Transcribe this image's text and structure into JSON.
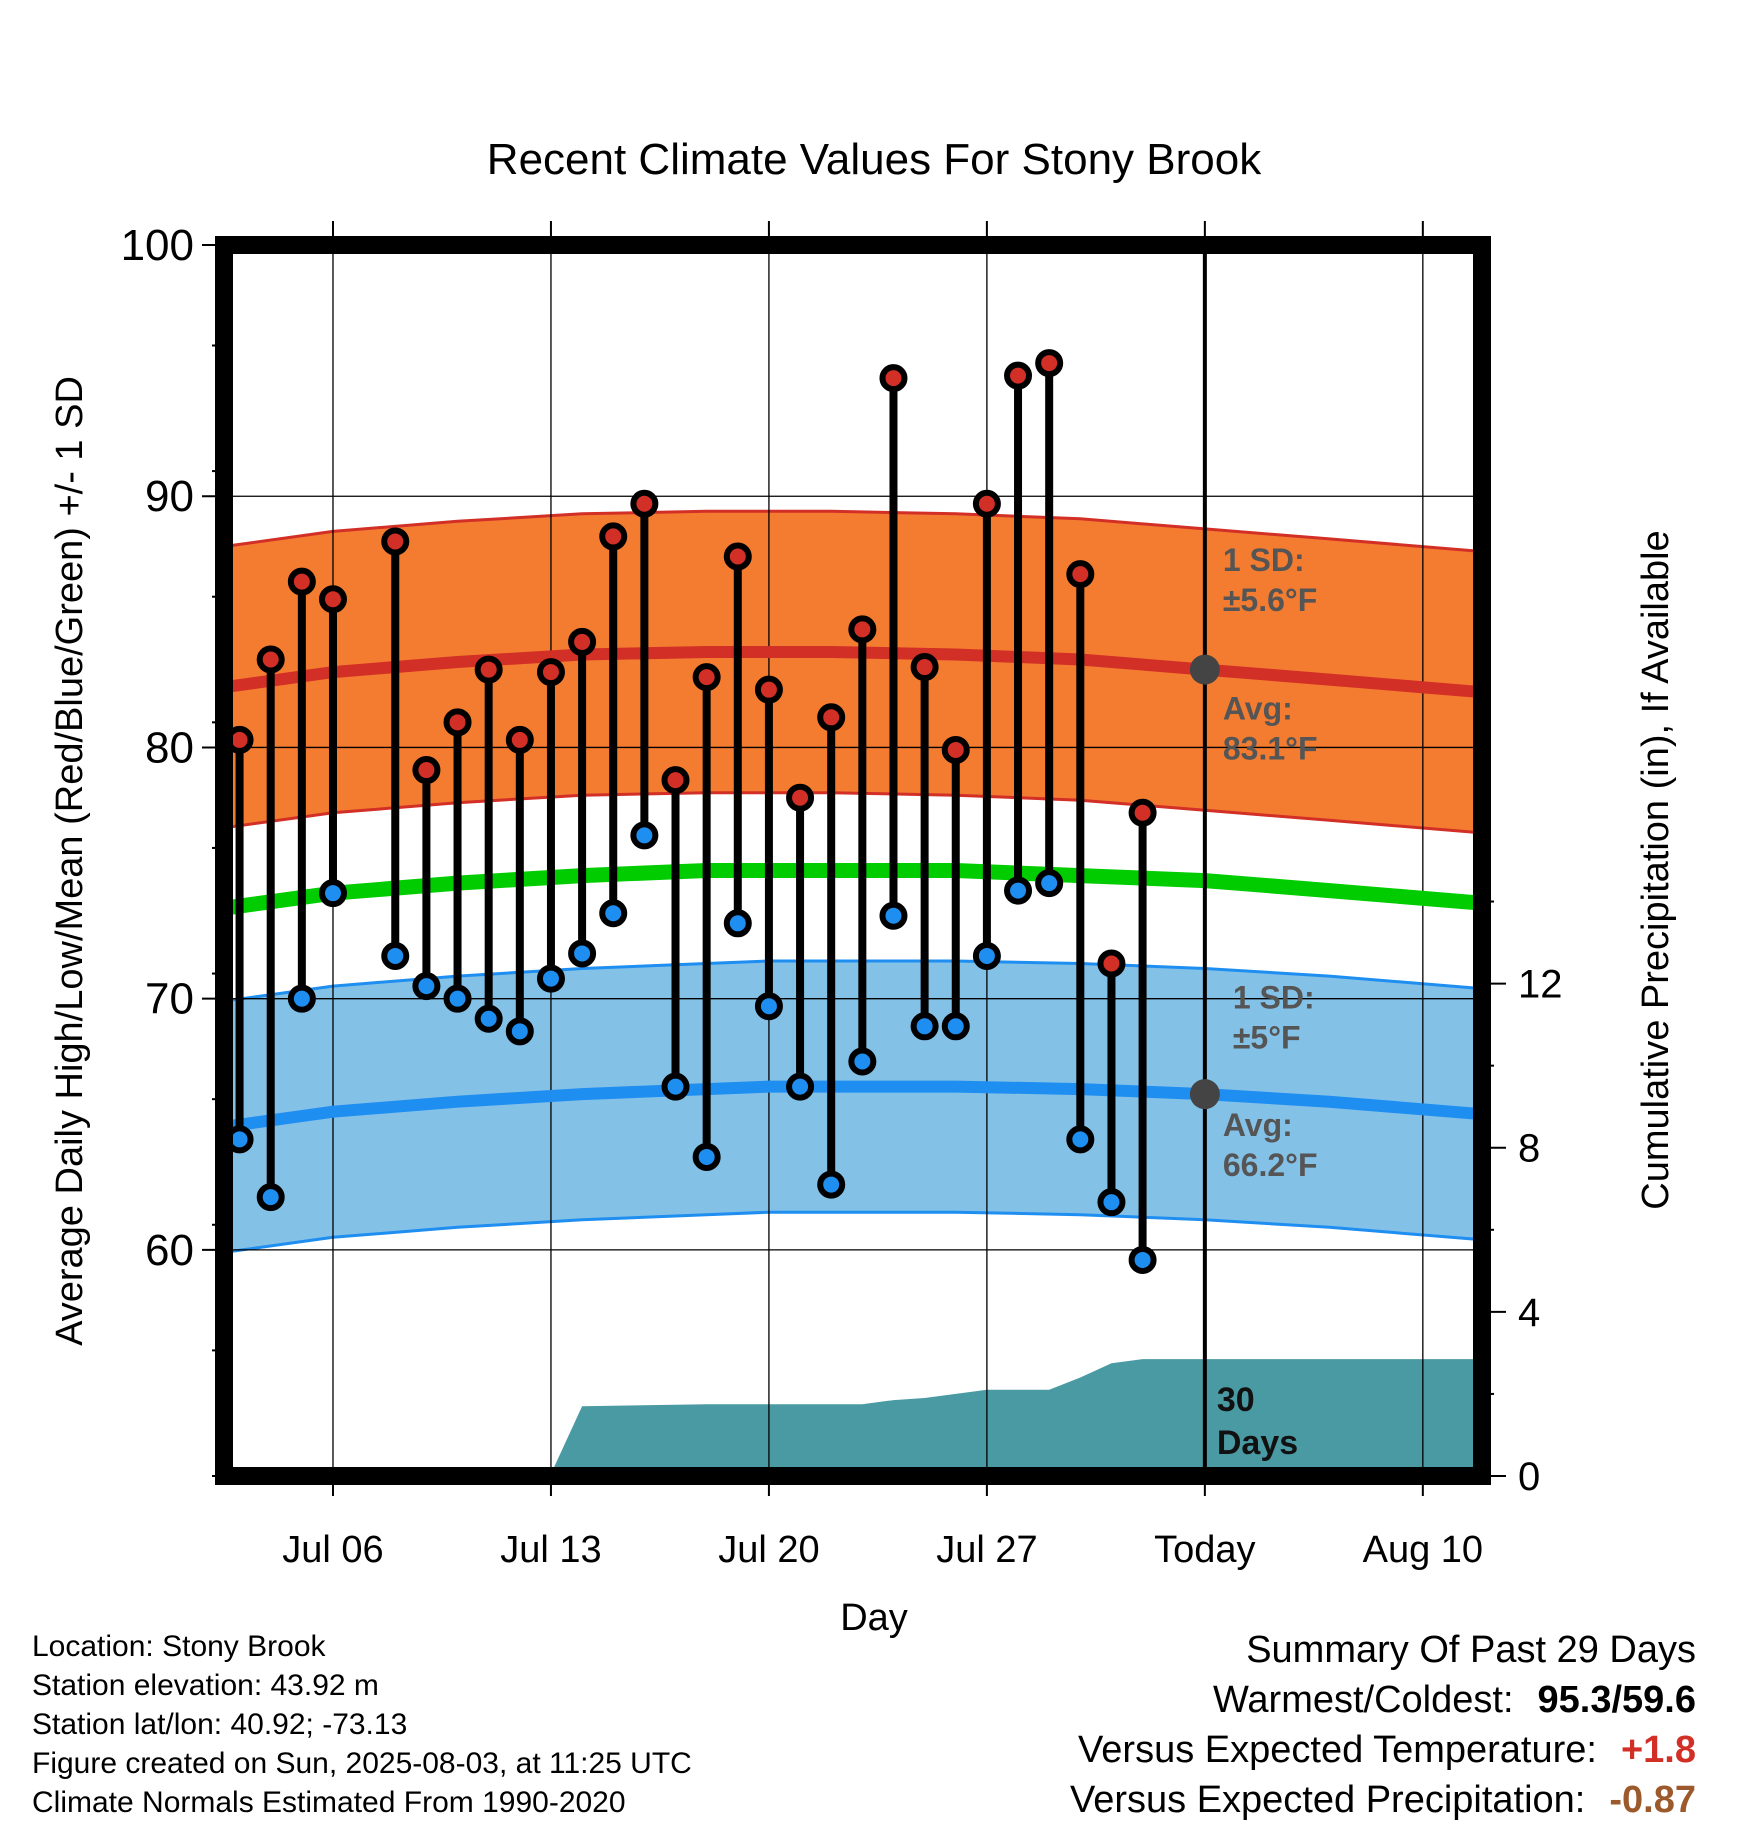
{
  "chart_data": {
    "type": "line",
    "title": "Recent Climate Values For Stony Brook",
    "xlabel": "Day",
    "ylabel": "Average Daily High/Low/Mean (Red/Blue/Green) +/- 1 SD",
    "y2label": "Cumulative Precipitation (in), If Available",
    "ylim": [
      51,
      100
    ],
    "y2lim": [
      0,
      30
    ],
    "yticks": [
      "60",
      "70",
      "80",
      "90",
      "100"
    ],
    "y2ticks": [
      "0",
      "4",
      "8",
      "12"
    ],
    "xticks": [
      {
        "day": 6,
        "label": "Jul 06"
      },
      {
        "day": 13,
        "label": "Jul 13"
      },
      {
        "day": 20,
        "label": "Jul 20"
      },
      {
        "day": 27,
        "label": "Jul 27"
      },
      {
        "day": 34,
        "label": "Today"
      },
      {
        "day": 41,
        "label": "Aug 10"
      }
    ],
    "xlim": [
      2.5,
      42.9
    ],
    "today_day": 34,
    "grid": true,
    "observed_days": [
      3,
      4,
      5,
      6,
      7,
      8,
      9,
      10,
      11,
      12,
      13,
      14,
      15,
      16,
      17,
      18,
      19,
      20,
      21,
      22,
      23,
      24,
      25,
      26,
      27,
      28,
      29,
      30,
      31,
      32,
      33
    ],
    "observed_high": [
      80.3,
      83.5,
      86.6,
      85.9,
      null,
      88.2,
      79.1,
      81.0,
      83.1,
      80.3,
      83.0,
      84.2,
      88.4,
      89.7,
      78.7,
      82.8,
      87.6,
      82.3,
      78.0,
      81.2,
      84.7,
      94.7,
      83.2,
      79.9,
      89.7,
      94.8,
      95.3,
      86.9,
      71.4,
      77.4,
      null
    ],
    "observed_low": [
      64.4,
      62.1,
      70.0,
      74.2,
      null,
      71.7,
      70.5,
      70.0,
      69.2,
      68.7,
      70.8,
      71.8,
      73.4,
      76.5,
      66.5,
      63.7,
      73.0,
      69.7,
      66.5,
      62.6,
      67.5,
      73.3,
      68.9,
      68.9,
      71.7,
      74.3,
      74.6,
      64.4,
      61.9,
      59.6,
      null
    ],
    "normal_days": [
      2.5,
      6,
      10,
      14,
      18,
      20,
      22,
      26,
      30,
      34,
      38,
      42.9
    ],
    "normal_high": [
      82.4,
      83.0,
      83.4,
      83.7,
      83.8,
      83.8,
      83.8,
      83.7,
      83.5,
      83.1,
      82.7,
      82.2
    ],
    "normal_high_sd": 5.6,
    "normal_low": [
      64.9,
      65.5,
      65.9,
      66.2,
      66.4,
      66.5,
      66.5,
      66.5,
      66.4,
      66.2,
      65.9,
      65.4
    ],
    "normal_low_sd": 5,
    "normal_mean": [
      73.6,
      74.2,
      74.6,
      74.9,
      75.1,
      75.1,
      75.1,
      75.1,
      74.9,
      74.7,
      74.3,
      73.8
    ],
    "precip_cumulative": {
      "days": [
        2.5,
        10,
        11,
        12,
        13,
        14,
        18,
        23,
        24,
        25,
        26,
        27,
        28,
        29,
        30,
        31,
        32,
        33,
        34,
        42.9
      ],
      "values": [
        0,
        0,
        0.05,
        0.05,
        0.05,
        1.7,
        1.75,
        1.75,
        1.85,
        1.9,
        2.0,
        2.1,
        2.1,
        2.1,
        2.4,
        2.75,
        2.85,
        2.85,
        2.85,
        2.85
      ]
    },
    "annotations": {
      "high_sd": [
        "1 SD:",
        "±5.6°F"
      ],
      "high_avg": [
        "Avg:",
        "83.1°F"
      ],
      "low_sd": [
        "1 SD:",
        "±5°F"
      ],
      "low_avg": [
        "Avg:",
        "66.2°F"
      ],
      "days": [
        "30",
        "Days"
      ]
    },
    "colors": {
      "high_band": "#f47c30",
      "high_line": "#d22f26",
      "low_band": "#84c1e7",
      "low_line": "#1f8ef1",
      "mean_line": "#00cc00",
      "precip": "#4a9aa4",
      "high_marker": "#d22f26",
      "low_marker": "#1f8ef1",
      "annotation_text": "#555555"
    }
  },
  "info": {
    "location": "Location: Stony Brook",
    "elevation": "Station elevation: 43.92 m",
    "latlon": "Station lat/lon: 40.92; -73.13",
    "created": "Figure created on Sun, 2025-08-03, at 11:25 UTC",
    "normals": "Climate Normals Estimated From 1990-2020"
  },
  "summary": {
    "title": "Summary Of Past 29 Days",
    "warm_cold_label": "Warmest/Coldest:",
    "warm_cold_value": "95.3/59.6",
    "temp_label": "Versus Expected Temperature:",
    "temp_value": "+1.8",
    "temp_color": "#d22f26",
    "precip_label": "Versus Expected Precipitation:",
    "precip_value": "-0.87",
    "precip_color": "#9c5a2c"
  }
}
